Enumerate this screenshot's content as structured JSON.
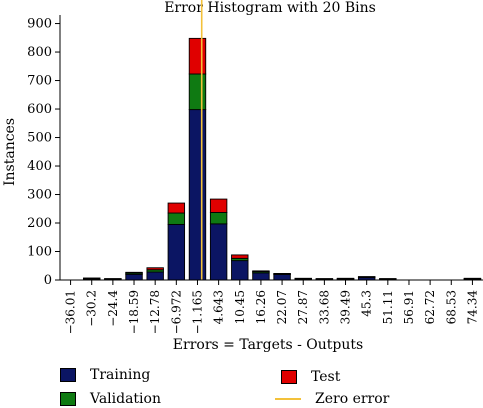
{
  "chart_data": {
    "type": "bar",
    "title": "Error Histogram with 20 Bins",
    "xlabel": "Errors = Targets - Outputs",
    "ylabel": "Instances",
    "ylim": [
      0,
      930
    ],
    "yticks": [
      0,
      100,
      200,
      300,
      400,
      500,
      600,
      700,
      800,
      900
    ],
    "categories": [
      "−36.01",
      "−30.2",
      "−24.4",
      "−18.59",
      "−12.78",
      "−6.972",
      "−1.165",
      "4.643",
      "10.45",
      "16.26",
      "22.07",
      "27.87",
      "33.68",
      "39.49",
      "45.3",
      "51.11",
      "56.91",
      "62.72",
      "68.53",
      "74.34"
    ],
    "stacked": true,
    "series": [
      {
        "name": "Training",
        "color": "#0b1563",
        "values": [
          0,
          5,
          3,
          20,
          28,
          195,
          598,
          197,
          68,
          25,
          20,
          4,
          3,
          4,
          10,
          3,
          0,
          0,
          0,
          4
        ]
      },
      {
        "name": "Validation",
        "color": "#0f7a12",
        "values": [
          0,
          1,
          1,
          5,
          8,
          40,
          125,
          40,
          8,
          5,
          2,
          1,
          1,
          1,
          1,
          1,
          0,
          0,
          0,
          1
        ]
      },
      {
        "name": "Test",
        "color": "#e00000",
        "values": [
          0,
          1,
          1,
          2,
          7,
          35,
          125,
          47,
          12,
          2,
          1,
          1,
          1,
          1,
          1,
          1,
          0,
          0,
          0,
          1
        ]
      }
    ],
    "reference_line": {
      "name": "Zero error",
      "x_value": 0,
      "color": "#f3c13a"
    },
    "grid": false
  },
  "legend": {
    "training": "Training",
    "validation": "Validation",
    "test": "Test",
    "zero_error": "Zero error"
  }
}
